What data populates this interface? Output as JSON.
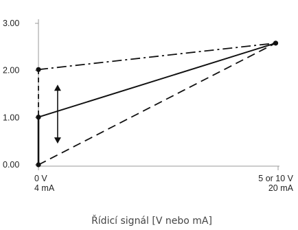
{
  "chart_data": {
    "type": "line",
    "title": "",
    "xlabel": "Řídicí signál [V nebo mA]",
    "ylabel": "",
    "xlim": [
      0,
      1
    ],
    "ylim": [
      0,
      3
    ],
    "y_ticks": [
      {
        "value": 0,
        "label": "0.00"
      },
      {
        "value": 1,
        "label": "1.00"
      },
      {
        "value": 2,
        "label": "2.00"
      },
      {
        "value": 3,
        "label": "3.00"
      }
    ],
    "x_ticks": [
      {
        "value": 0,
        "lines": [
          "0 V",
          "4 mA"
        ]
      },
      {
        "value": 1,
        "lines": [
          "5 or 10 V",
          "20 mA"
        ]
      }
    ],
    "series": [
      {
        "style": "dash-dot",
        "points": [
          [
            0,
            2.02
          ],
          [
            0.99,
            2.58
          ]
        ]
      },
      {
        "style": "solid",
        "points": [
          [
            0,
            1.01
          ],
          [
            0.99,
            2.58
          ]
        ]
      },
      {
        "style": "dashed",
        "points": [
          [
            0,
            0.0
          ],
          [
            0.99,
            2.58
          ]
        ]
      },
      {
        "style": "dashed-short",
        "points": [
          [
            0,
            0.0
          ],
          [
            0,
            2.02
          ]
        ]
      },
      {
        "style": "solid-thick",
        "points": [
          [
            0,
            0.0
          ],
          [
            0,
            1.01
          ]
        ]
      }
    ],
    "markers": [
      [
        0,
        0.0
      ],
      [
        0,
        1.01
      ],
      [
        0,
        2.02
      ],
      [
        0.99,
        2.58
      ]
    ],
    "double_arrow": {
      "x": 0.08,
      "y_from": 0.45,
      "y_to": 1.7
    },
    "grid": false,
    "colors": {
      "line": "#111111",
      "axis": "#999999",
      "text": "#222222"
    }
  }
}
